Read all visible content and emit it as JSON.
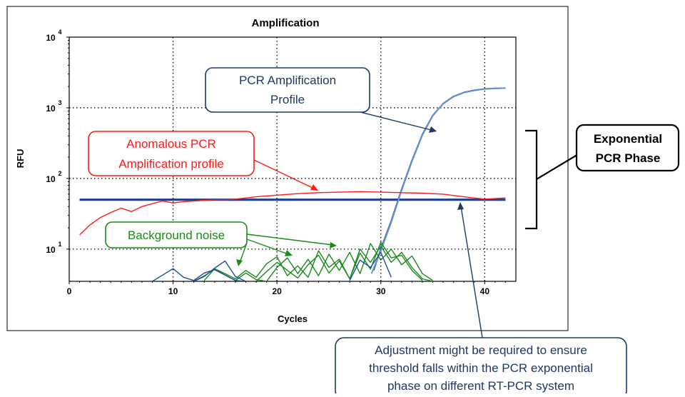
{
  "chart_data": {
    "type": "line",
    "title": "Amplification",
    "xlabel": "Cycles",
    "ylabel": "RFU",
    "xlim": [
      0,
      43
    ],
    "ylim": [
      3.5,
      10000
    ],
    "y_scale": "log",
    "grid": true,
    "x_ticks": [
      "0",
      "10",
      "20",
      "30",
      "40"
    ],
    "x_tick_values": [
      0,
      10,
      20,
      30,
      40
    ],
    "y_ticks": [
      {
        "value": 10,
        "base": "10",
        "exp": "1"
      },
      {
        "value": 100,
        "base": "10",
        "exp": "2"
      },
      {
        "value": 1000,
        "base": "10",
        "exp": "3"
      },
      {
        "value": 10000,
        "base": "10",
        "exp": "4"
      }
    ],
    "series": [
      {
        "role": "pcr-amplification",
        "color": "#1f4e9c",
        "x": [
          29.3,
          30,
          31,
          32,
          33,
          34,
          35,
          36,
          37,
          38,
          39,
          40,
          41,
          42
        ],
        "y": [
          5,
          10,
          25,
          70,
          180,
          420,
          780,
          1150,
          1450,
          1650,
          1770,
          1850,
          1880,
          1900
        ]
      },
      {
        "role": "pcr-amplification-replicate",
        "color": "#6a93d0",
        "x": [
          29.1,
          30,
          31,
          32,
          33,
          34,
          35,
          36,
          37,
          38,
          39,
          40,
          41,
          42
        ],
        "y": [
          4.5,
          9.5,
          24,
          68,
          175,
          410,
          770,
          1140,
          1440,
          1640,
          1760,
          1845,
          1875,
          1900
        ]
      },
      {
        "role": "anomalous-pcr",
        "color": "#ff1a1a",
        "x": [
          1,
          2,
          3,
          4,
          5,
          6,
          7,
          8,
          9,
          10,
          11,
          12,
          13,
          14,
          15,
          16,
          18,
          20,
          22,
          24,
          26,
          28,
          30,
          32,
          34,
          36,
          38,
          40,
          42
        ],
        "y": [
          16,
          22,
          28,
          33,
          38,
          34,
          40,
          44,
          48,
          45,
          47,
          48,
          49,
          50,
          50,
          51,
          55,
          58,
          61,
          63,
          64,
          65,
          64,
          63,
          62,
          60,
          55,
          51,
          53
        ]
      },
      {
        "role": "background-noise",
        "color": "#1a8a1a",
        "x": [
          12,
          13,
          14,
          15,
          16,
          17,
          18,
          19,
          20,
          21,
          22,
          23,
          24,
          25,
          26,
          27,
          28,
          29,
          30,
          31,
          32,
          33,
          34,
          35
        ],
        "y": [
          3.5,
          4.2,
          5.2,
          4.3,
          3.6,
          4.6,
          3.7,
          3.5,
          5.5,
          7.5,
          4.5,
          7.2,
          4.2,
          8.5,
          5,
          9,
          4.5,
          12,
          7,
          10,
          6,
          8,
          4.5,
          3.6
        ]
      },
      {
        "role": "background-noise",
        "color": "#1a8a1a",
        "x": [
          13,
          14,
          15,
          16,
          17,
          18,
          19,
          20,
          21,
          22,
          23,
          24,
          25,
          26,
          27,
          28,
          29,
          30,
          31,
          32,
          33,
          34,
          35
        ],
        "y": [
          3.6,
          5.3,
          4.5,
          3.8,
          5.0,
          4.0,
          6.2,
          7.8,
          4.2,
          5.8,
          4.0,
          9.5,
          5.5,
          7.2,
          3.8,
          10,
          6.5,
          11,
          6.5,
          9,
          5.5,
          3.8,
          3.5
        ]
      },
      {
        "role": "background-noise",
        "color": "#1a8a1a",
        "x": [
          18,
          19,
          20,
          21,
          22,
          23,
          24,
          25,
          26,
          27,
          28,
          29,
          30,
          31,
          32,
          33,
          34
        ],
        "y": [
          3.5,
          4.8,
          6.5,
          5.0,
          3.9,
          6.0,
          8.2,
          4.6,
          6.8,
          3.8,
          8.8,
          5.2,
          12.5,
          7.5,
          8.2,
          5.0,
          3.6
        ]
      },
      {
        "role": "background-noise",
        "color": "#1f4e9c",
        "x": [
          8,
          9,
          10,
          11,
          12,
          13,
          14,
          15,
          16,
          17
        ],
        "y": [
          3.5,
          4.3,
          5.3,
          4.0,
          3.6,
          4.6,
          5.1,
          4.3,
          3.6,
          3.5
        ]
      },
      {
        "role": "background-noise",
        "color": "#1f4e9c",
        "x": [
          12,
          13,
          14,
          15,
          16,
          17
        ],
        "y": [
          3.5,
          4.1,
          5.4,
          6.8,
          4.1,
          3.5
        ]
      },
      {
        "role": "background-noise",
        "color": "#1f4e9c",
        "x": [
          27,
          28,
          29,
          30,
          31
        ],
        "y": [
          3.6,
          7.0,
          5.5,
          9.0,
          4.0
        ]
      }
    ],
    "threshold": {
      "value": 50,
      "color": "#1f3f8a",
      "x_range": [
        1,
        42
      ]
    },
    "annotations": {
      "pcr_profile": [
        "PCR Amplification",
        "Profile"
      ],
      "anomalous": [
        "Anomalous PCR",
        "Amplification profile"
      ],
      "noise": [
        "Background noise"
      ],
      "exponential": [
        "Exponential",
        "PCR Phase"
      ],
      "adjustment": [
        "Adjustment might be required to ensure",
        "threshold falls within the PCR exponential",
        "phase on different RT-PCR system"
      ]
    }
  }
}
